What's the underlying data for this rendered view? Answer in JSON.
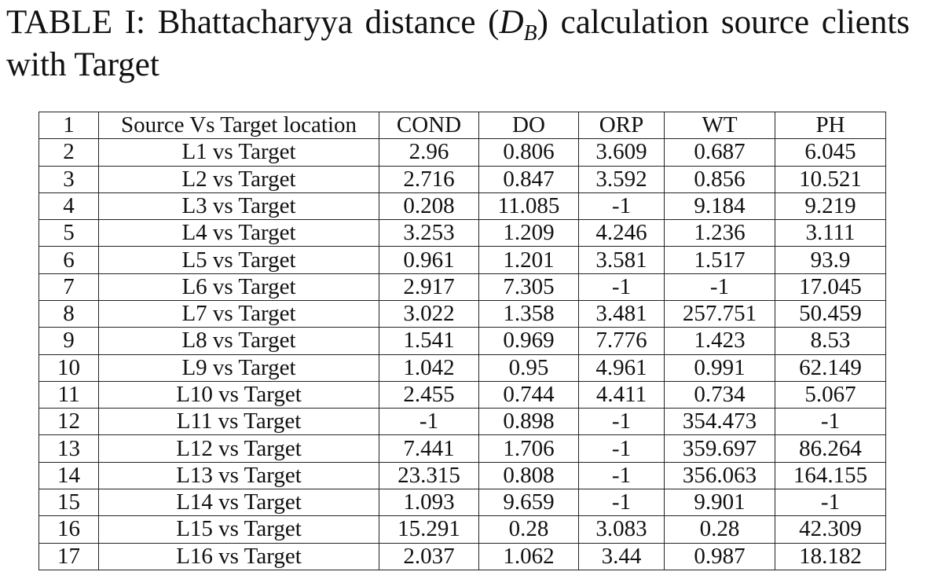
{
  "caption": {
    "prefix": "TABLE I: Bhattacharyya distance (",
    "symbol": "D",
    "subscript": "B",
    "suffix": ") calculation source clients with Target"
  },
  "table": {
    "header": [
      "1",
      "Source Vs Target location",
      "COND",
      "DO",
      "ORP",
      "WT",
      "PH"
    ],
    "rows": [
      [
        "2",
        "L1 vs Target",
        "2.96",
        "0.806",
        "3.609",
        "0.687",
        "6.045"
      ],
      [
        "3",
        "L2 vs Target",
        "2.716",
        "0.847",
        "3.592",
        "0.856",
        "10.521"
      ],
      [
        "4",
        "L3 vs Target",
        "0.208",
        "11.085",
        "-1",
        "9.184",
        "9.219"
      ],
      [
        "5",
        "L4 vs Target",
        "3.253",
        "1.209",
        "4.246",
        "1.236",
        "3.111"
      ],
      [
        "6",
        "L5 vs Target",
        "0.961",
        "1.201",
        "3.581",
        "1.517",
        "93.9"
      ],
      [
        "7",
        "L6 vs Target",
        "2.917",
        "7.305",
        "-1",
        "-1",
        "17.045"
      ],
      [
        "8",
        "L7 vs Target",
        "3.022",
        "1.358",
        "3.481",
        "257.751",
        "50.459"
      ],
      [
        "9",
        "L8 vs Target",
        "1.541",
        "0.969",
        "7.776",
        "1.423",
        "8.53"
      ],
      [
        "10",
        "L9 vs Target",
        "1.042",
        "0.95",
        "4.961",
        "0.991",
        "62.149"
      ],
      [
        "11",
        "L10 vs Target",
        "2.455",
        "0.744",
        "4.411",
        "0.734",
        "5.067"
      ],
      [
        "12",
        "L11 vs Target",
        "-1",
        "0.898",
        "-1",
        "354.473",
        "-1"
      ],
      [
        "13",
        "L12 vs Target",
        "7.441",
        "1.706",
        "-1",
        "359.697",
        "86.264"
      ],
      [
        "14",
        "L13 vs Target",
        "23.315",
        "0.808",
        "-1",
        "356.063",
        "164.155"
      ],
      [
        "15",
        "L14 vs Target",
        "1.093",
        "9.659",
        "-1",
        "9.901",
        "-1"
      ],
      [
        "16",
        "L15 vs Target",
        "15.291",
        "0.28",
        "3.083",
        "0.28",
        "42.309"
      ],
      [
        "17",
        "L16 vs Target",
        "2.037",
        "1.062",
        "3.44",
        "0.987",
        "18.182"
      ]
    ]
  }
}
